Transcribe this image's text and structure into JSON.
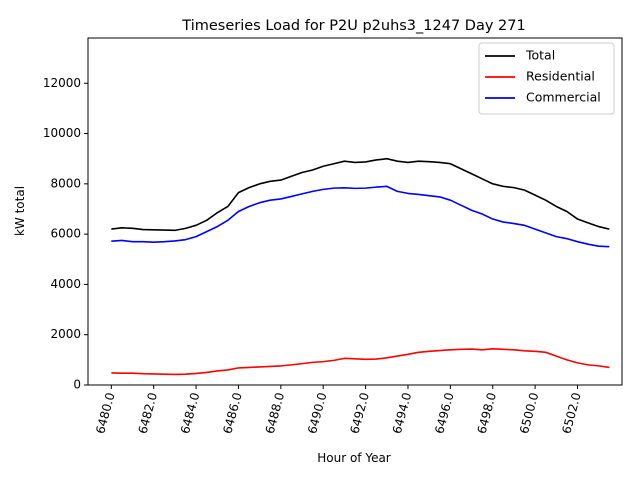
{
  "chart_data": {
    "type": "line",
    "title": "Timeseries Load for P2U p2uhs3_1247  Day 271",
    "xlabel": "Hour of Year",
    "ylabel": "kW total",
    "xlim": [
      6478.9,
      6504.1
    ],
    "ylim": [
      0,
      13800
    ],
    "x_ticks": [
      6480,
      6482,
      6484,
      6486,
      6488,
      6490,
      6492,
      6494,
      6496,
      6498,
      6500,
      6502
    ],
    "x_tick_labels": [
      "6480.0",
      "6482.0",
      "6484.0",
      "6486.0",
      "6488.0",
      "6490.0",
      "6492.0",
      "6494.0",
      "6496.0",
      "6498.0",
      "6500.0",
      "6502.0"
    ],
    "y_ticks": [
      0,
      2000,
      4000,
      6000,
      8000,
      10000,
      12000
    ],
    "y_tick_labels": [
      "0",
      "2000",
      "4000",
      "6000",
      "8000",
      "10000",
      "12000"
    ],
    "legend_position": "top-right",
    "x": [
      6480,
      6480.5,
      6481,
      6481.5,
      6482,
      6482.5,
      6483,
      6483.5,
      6484,
      6484.5,
      6485,
      6485.5,
      6486,
      6486.5,
      6487,
      6487.5,
      6488,
      6488.5,
      6489,
      6489.5,
      6490,
      6490.5,
      6491,
      6491.5,
      6492,
      6492.5,
      6493,
      6493.5,
      6494,
      6494.5,
      6495,
      6495.5,
      6496,
      6496.5,
      6497,
      6497.5,
      6498,
      6498.5,
      6499,
      6499.5,
      6500,
      6500.5,
      6501,
      6501.5,
      6502,
      6502.5,
      6503,
      6503.5
    ],
    "series": [
      {
        "name": "Total",
        "color": "#000000",
        "values": [
          6200,
          6250,
          6230,
          6180,
          6170,
          6160,
          6150,
          6230,
          6350,
          6550,
          6850,
          7100,
          7650,
          7850,
          8000,
          8100,
          8150,
          8300,
          8450,
          8550,
          8700,
          8800,
          8900,
          8850,
          8870,
          8950,
          9000,
          8900,
          8850,
          8900,
          8880,
          8850,
          8800,
          8600,
          8400,
          8200,
          8000,
          7900,
          7850,
          7750,
          7550,
          7350,
          7100,
          6900,
          6600,
          6450,
          6300,
          6200
        ]
      },
      {
        "name": "Residential",
        "color": "#ff0000",
        "values": [
          480,
          470,
          470,
          450,
          440,
          430,
          420,
          430,
          460,
          500,
          560,
          600,
          680,
          700,
          720,
          740,
          760,
          800,
          850,
          900,
          930,
          980,
          1060,
          1040,
          1020,
          1030,
          1080,
          1150,
          1220,
          1300,
          1340,
          1370,
          1400,
          1420,
          1430,
          1400,
          1440,
          1420,
          1400,
          1360,
          1340,
          1300,
          1150,
          1000,
          880,
          800,
          760,
          700
        ]
      },
      {
        "name": "Commercial",
        "color": "#0000ff",
        "values": [
          5720,
          5750,
          5700,
          5700,
          5680,
          5700,
          5730,
          5780,
          5900,
          6100,
          6300,
          6550,
          6900,
          7100,
          7250,
          7350,
          7400,
          7500,
          7600,
          7700,
          7780,
          7830,
          7840,
          7820,
          7830,
          7870,
          7900,
          7700,
          7620,
          7580,
          7530,
          7480,
          7350,
          7150,
          6950,
          6800,
          6600,
          6480,
          6420,
          6350,
          6200,
          6050,
          5900,
          5820,
          5700,
          5600,
          5520,
          5500
        ]
      }
    ]
  }
}
